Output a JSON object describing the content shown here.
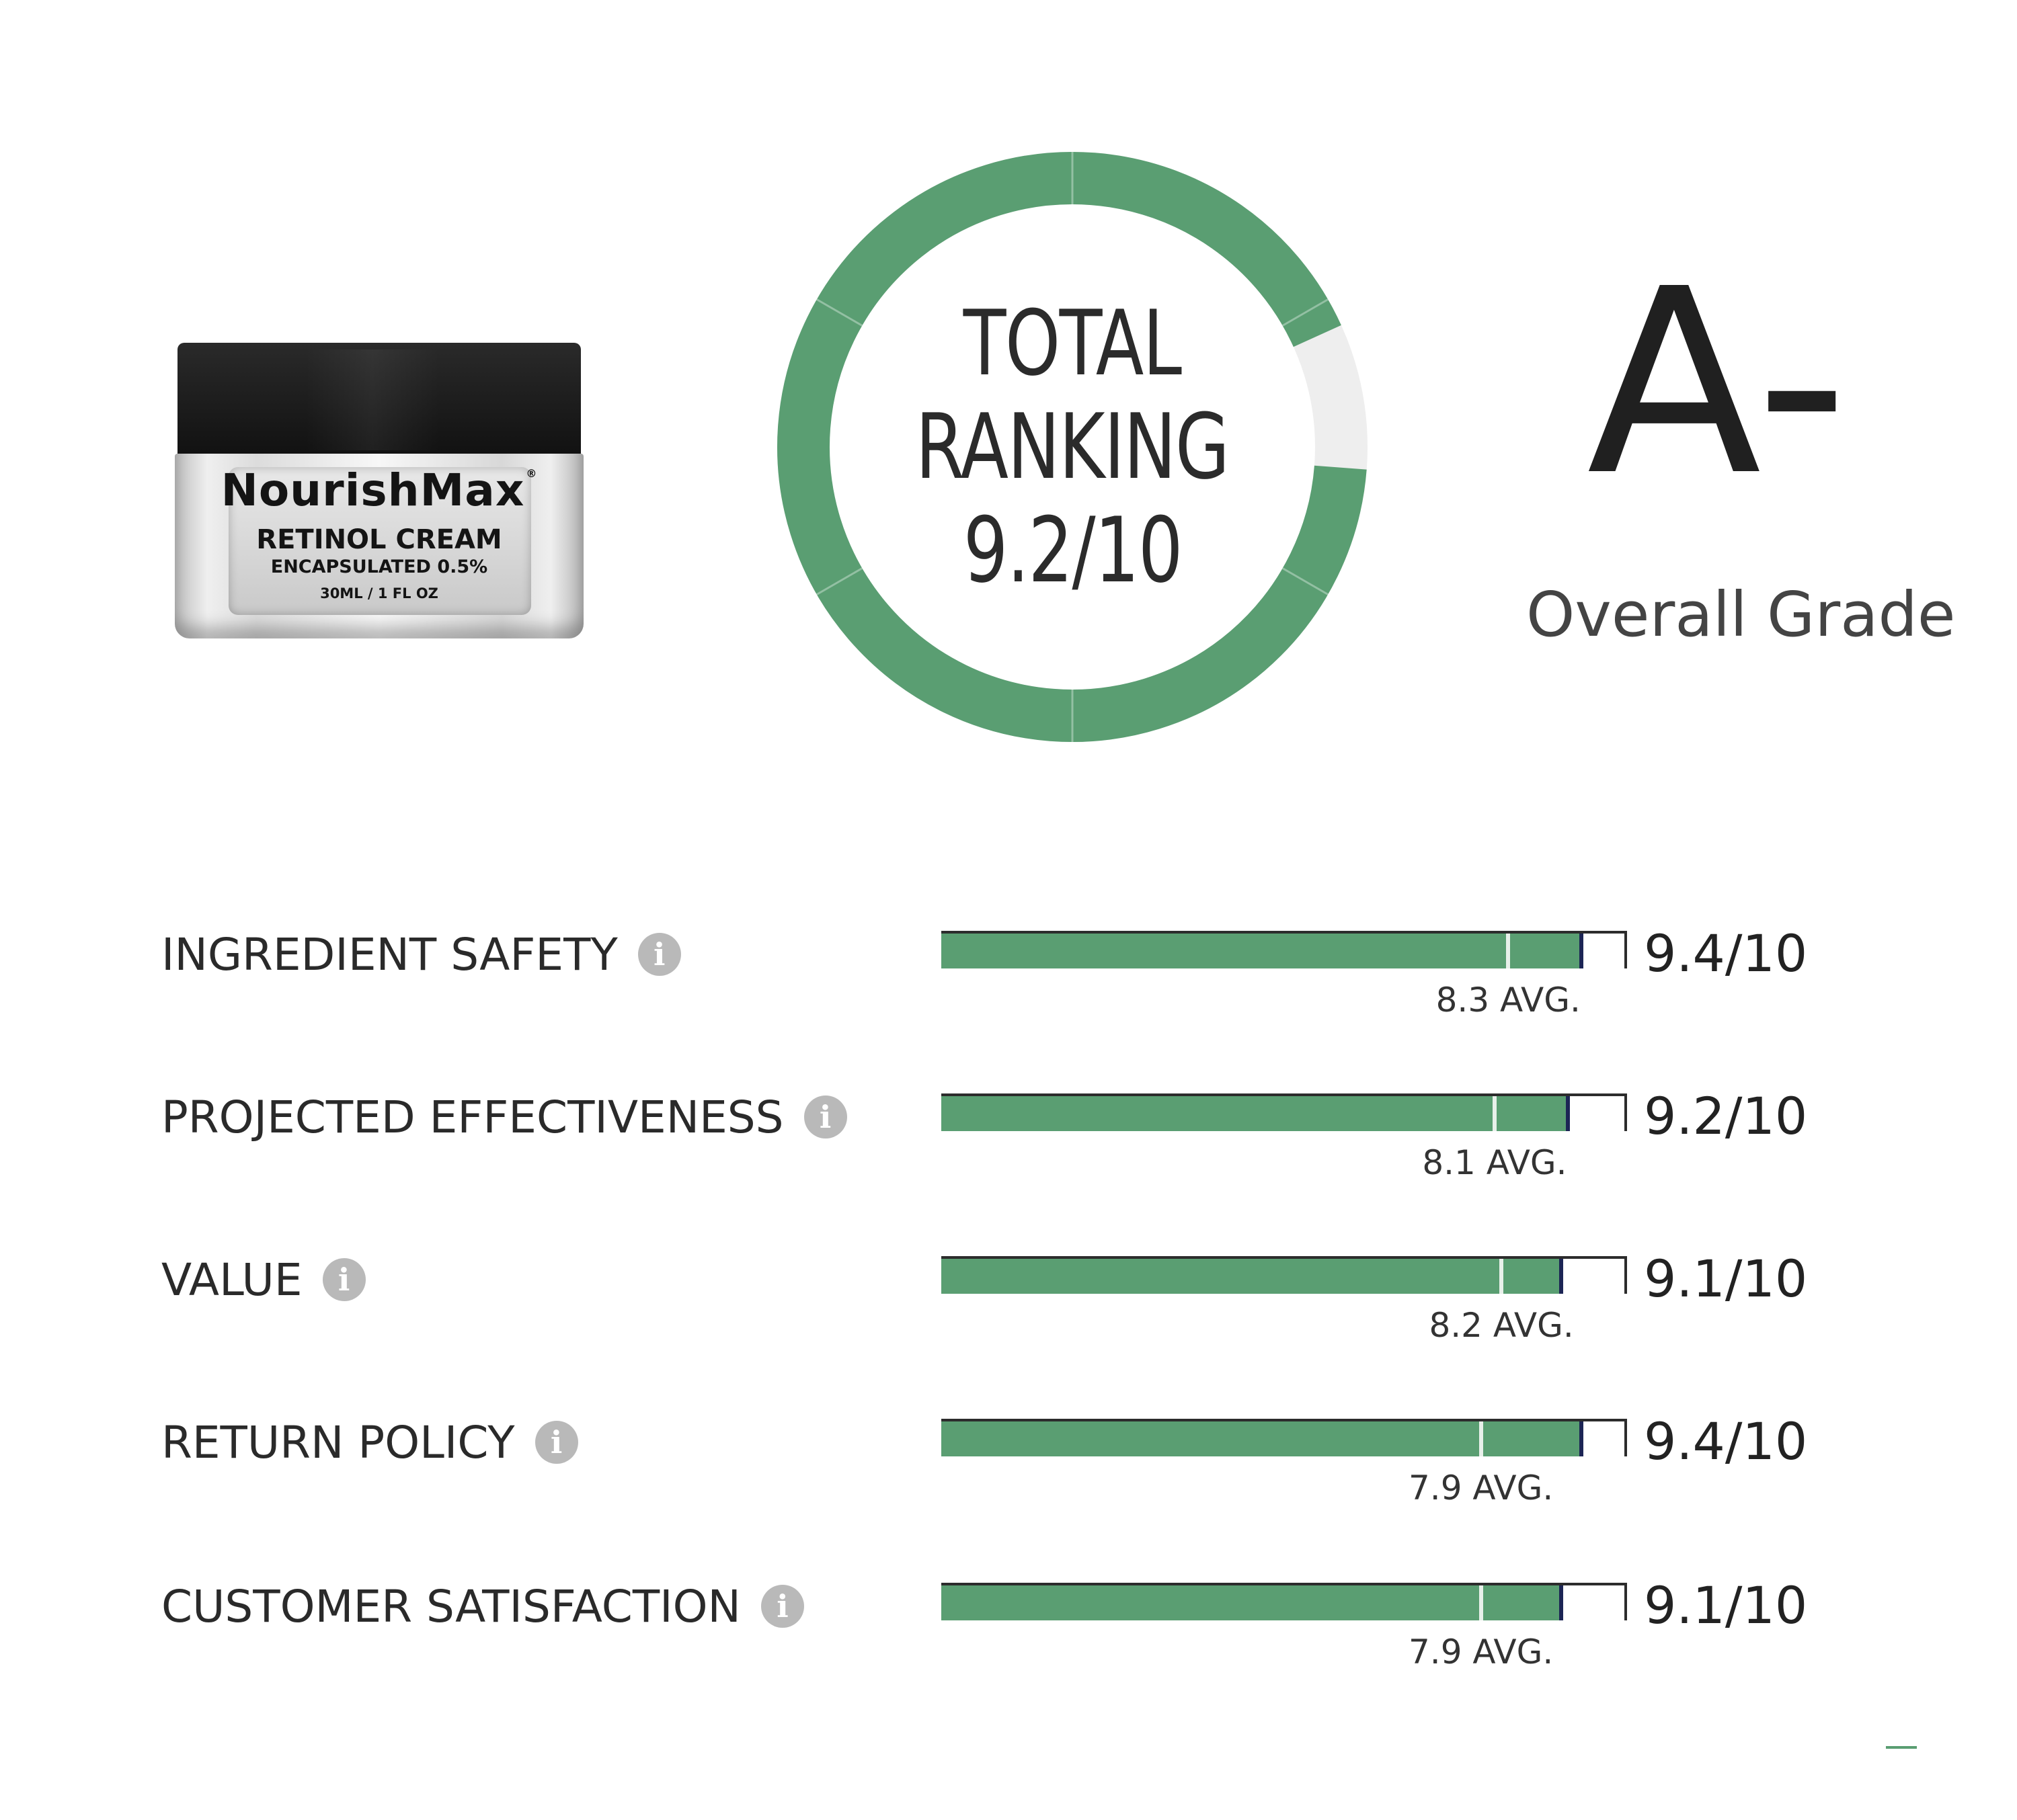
{
  "product": {
    "brand": "NourishMax",
    "registered_mark": "®",
    "line1": "RETINOL CREAM",
    "line2": "ENCAPSULATED 0.5%",
    "line3": "30ML / 1 FL OZ"
  },
  "total_ranking": {
    "line1": "TOTAL",
    "line2": "RANKING",
    "line3": "9.2/10",
    "score": 9.2,
    "max": 10,
    "color_fill": "#5a9e72",
    "color_empty": "#eeeeee"
  },
  "grade": {
    "value": "A-",
    "caption": "Overall Grade"
  },
  "criteria": [
    {
      "label": "INGREDIENT SAFETY",
      "score": 9.4,
      "score_text": "9.4/10",
      "avg": 8.3,
      "avg_text": "8.3 AVG."
    },
    {
      "label": "PROJECTED EFFECTIVENESS",
      "score": 9.2,
      "score_text": "9.2/10",
      "avg": 8.1,
      "avg_text": "8.1 AVG."
    },
    {
      "label": "VALUE",
      "score": 9.1,
      "score_text": "9.1/10",
      "avg": 8.2,
      "avg_text": "8.2 AVG."
    },
    {
      "label": "RETURN POLICY",
      "score": 9.4,
      "score_text": "9.4/10",
      "avg": 7.9,
      "avg_text": "7.9 AVG."
    },
    {
      "label": "CUSTOMER SATISFACTION",
      "score": 9.1,
      "score_text": "9.1/10",
      "avg": 7.9,
      "avg_text": "7.9 AVG."
    }
  ],
  "icons": {
    "info": "info-icon",
    "info_glyph": "i"
  },
  "colors": {
    "bar_fill": "#5a9e72",
    "score_marker": "#1c2555",
    "avg_marker": "#e8f0ea"
  }
}
